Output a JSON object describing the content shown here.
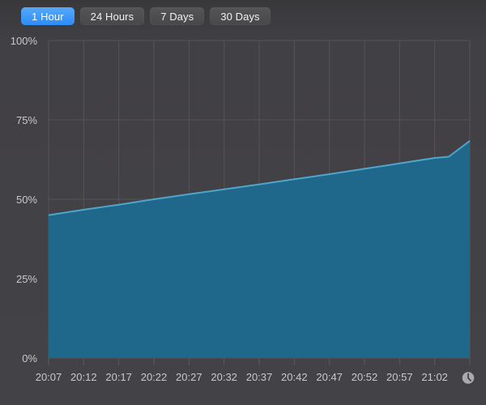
{
  "tabs": {
    "selected_index": 0,
    "items": [
      {
        "label": "1 Hour"
      },
      {
        "label": "24 Hours"
      },
      {
        "label": "7 Days"
      },
      {
        "label": "30 Days"
      }
    ]
  },
  "colors": {
    "selected_tab_top": "#56a9fa",
    "selected_tab_bottom": "#2e8cf6",
    "unselected_tab": "#4b4a4d",
    "background": "#414044",
    "gridline": "#555459",
    "tick": "#5b5a5e",
    "axis_text": "#c9c9cc",
    "area_fill": "#1f678b",
    "area_line": "#4ea6cd",
    "clock_icon_fill": "#aaaaac",
    "clock_icon_hands": "#403f43"
  },
  "icons": {
    "time_axis_mode": "clock-icon"
  },
  "chart_data": {
    "type": "area",
    "title": "",
    "xlabel": "time",
    "ylabel": "percent",
    "grid": true,
    "legend": "none",
    "ylim": [
      0,
      100
    ],
    "xlim_minutes": [
      0,
      60
    ],
    "x_gridline_step_minutes": 5,
    "y_tick_values": [
      0,
      25,
      50,
      75,
      100
    ],
    "y_tick_labels": [
      "0%",
      "25%",
      "50%",
      "75%",
      "100%"
    ],
    "x_tick_minutes": [
      0,
      5,
      10,
      15,
      20,
      25,
      30,
      35,
      40,
      45,
      50,
      55
    ],
    "x_tick_labels": [
      "20:07",
      "20:12",
      "20:17",
      "20:22",
      "20:27",
      "20:32",
      "20:37",
      "20:42",
      "20:47",
      "20:52",
      "20:57",
      "21:02"
    ],
    "series": [
      {
        "name": "charge-level-percent",
        "x_minutes": [
          0,
          5,
          10,
          15,
          20,
          25,
          30,
          35,
          40,
          45,
          50,
          55,
          57,
          60
        ],
        "values": [
          45.0,
          46.7,
          48.3,
          50.0,
          51.6,
          53.1,
          54.7,
          56.3,
          57.9,
          59.6,
          61.3,
          63.0,
          63.4,
          68.4
        ]
      }
    ]
  }
}
